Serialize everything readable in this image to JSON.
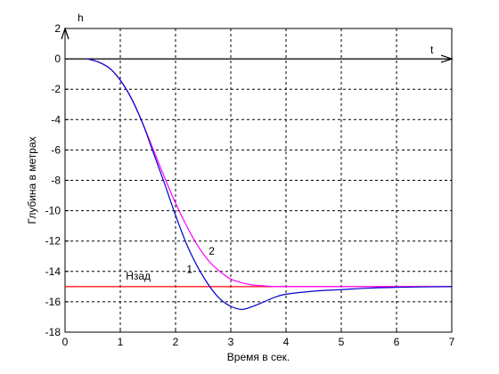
{
  "chart_data": {
    "type": "line",
    "xlabel": "Время в сек.",
    "ylabel": "Глубина в метрах",
    "xlim": [
      0,
      7
    ],
    "ylim": [
      -18,
      2
    ],
    "xticks": [
      "0",
      "1",
      "2",
      "3",
      "4",
      "5",
      "6",
      "7"
    ],
    "yticks": [
      "2",
      "0",
      "-2",
      "-4",
      "-6",
      "-8",
      "-10",
      "-12",
      "-14",
      "-16",
      "-18"
    ],
    "grid": true,
    "axis_arrow_labels": {
      "x": "t",
      "y": "h"
    },
    "reference_line": {
      "label": "Нзад",
      "y": -15,
      "color": "#ff0000"
    },
    "series": [
      {
        "label": "1",
        "color": "#0000cc",
        "x": [
          0.4,
          0.6,
          0.8,
          1.0,
          1.2,
          1.4,
          1.6,
          1.8,
          2.0,
          2.2,
          2.4,
          2.6,
          2.8,
          3.0,
          3.2,
          3.4,
          3.6,
          3.8,
          4.0,
          4.5,
          5.0,
          5.5,
          6.0,
          6.5,
          7.0
        ],
        "y": [
          0,
          -0.2,
          -0.6,
          -1.4,
          -2.6,
          -4.2,
          -6.2,
          -8.2,
          -10.3,
          -12.2,
          -13.7,
          -14.9,
          -15.8,
          -16.3,
          -16.5,
          -16.3,
          -16.0,
          -15.7,
          -15.5,
          -15.3,
          -15.2,
          -15.1,
          -15.05,
          -15.02,
          -15.0
        ]
      },
      {
        "label": "2",
        "color": "#ff00ff",
        "x": [
          0.4,
          0.6,
          0.8,
          1.0,
          1.2,
          1.4,
          1.6,
          1.8,
          2.0,
          2.2,
          2.4,
          2.6,
          2.8,
          3.0,
          3.2,
          3.4,
          3.6,
          3.8,
          4.0,
          4.5,
          5.0,
          5.5,
          6.0,
          6.5,
          7.0
        ],
        "y": [
          0,
          -0.2,
          -0.6,
          -1.4,
          -2.6,
          -4.2,
          -6.0,
          -7.8,
          -9.5,
          -11.0,
          -12.3,
          -13.3,
          -14.0,
          -14.5,
          -14.75,
          -14.9,
          -14.95,
          -15.0,
          -15.0,
          -15.0,
          -15.0,
          -15.0,
          -15.0,
          -15.0,
          -15.0
        ]
      }
    ]
  }
}
